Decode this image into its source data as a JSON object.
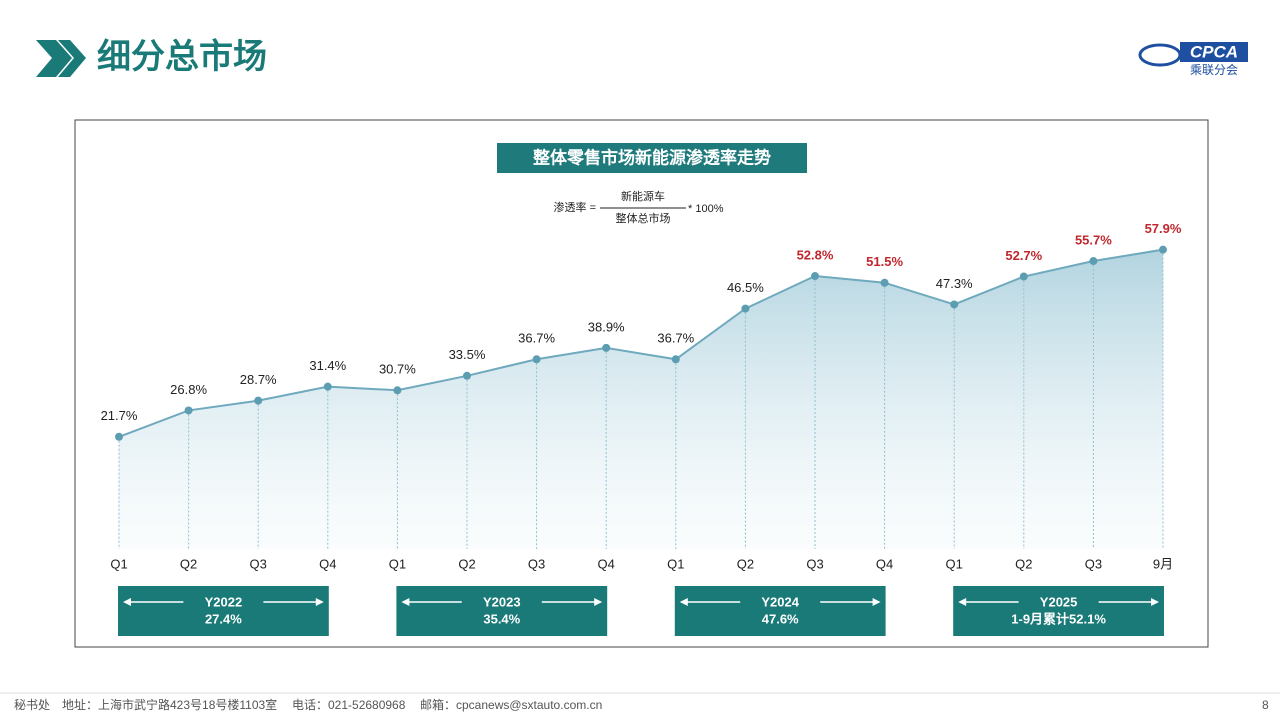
{
  "header": {
    "title": "细分总市场",
    "logo": "CPCA",
    "logo_sub": "乘联分会"
  },
  "chart_data": {
    "type": "area",
    "title": "整体零售市场新能源渗透率走势",
    "formula": {
      "lhs": "渗透率 =",
      "numerator": "新能源车",
      "denominator": "整体总市场",
      "rhs": "* 100%"
    },
    "categories": [
      "Q1",
      "Q2",
      "Q3",
      "Q4",
      "Q1",
      "Q2",
      "Q3",
      "Q4",
      "Q1",
      "Q2",
      "Q3",
      "Q4",
      "Q1",
      "Q2",
      "Q3",
      "9月"
    ],
    "values": [
      21.7,
      26.8,
      28.7,
      31.4,
      30.7,
      33.5,
      36.7,
      38.9,
      36.7,
      46.5,
      52.8,
      51.5,
      47.3,
      52.7,
      55.7,
      57.9
    ],
    "value_labels": [
      "21.7%",
      "26.8%",
      "28.7%",
      "31.4%",
      "30.7%",
      "33.5%",
      "36.7%",
      "38.9%",
      "36.7%",
      "46.5%",
      "52.8%",
      "51.5%",
      "47.3%",
      "52.7%",
      "55.7%",
      "57.9%"
    ],
    "label_colors": [
      "#222",
      "#222",
      "#222",
      "#222",
      "#222",
      "#222",
      "#222",
      "#222",
      "#222",
      "#222",
      "#c0282d",
      "#c0282d",
      "#222",
      "#c0282d",
      "#c0282d",
      "#c0282d"
    ],
    "color": "#6fa9bd",
    "annotations": [
      {
        "title": "Y2022",
        "text": "27.4%"
      },
      {
        "title": "Y2023",
        "text": "35.4%"
      },
      {
        "title": "Y2024",
        "text": "47.6%"
      },
      {
        "title": "Y2025",
        "text": "1-9月累计52.1%"
      }
    ]
  },
  "footer": {
    "office": "秘书处",
    "address": "地址：上海市武宁路423号18号楼1103室",
    "phone": "电话：021-52680968",
    "email": "邮箱：cpcanews@sxtauto.com.cn",
    "page": "8"
  }
}
